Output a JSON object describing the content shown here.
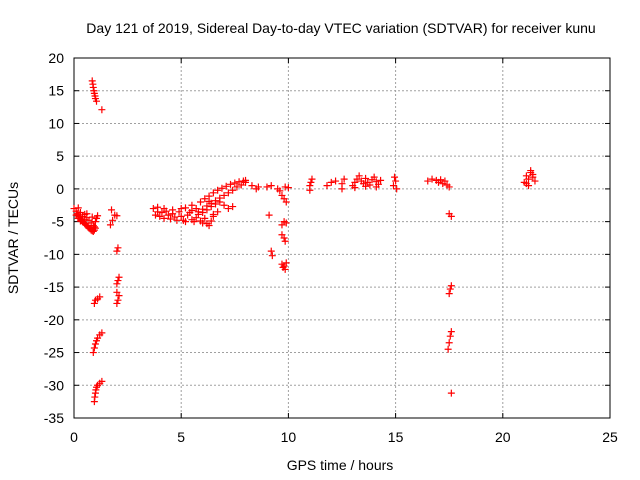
{
  "chart_data": {
    "type": "scatter",
    "title": "Day 121 of 2019, Sidereal Day-to-day VTEC variation (SDTVAR) for receiver kunu",
    "xlabel": "GPS time / hours",
    "ylabel": "SDTVAR / TECUs",
    "xlim": [
      0,
      25
    ],
    "ylim": [
      -35,
      20
    ],
    "xticks": [
      0,
      5,
      10,
      15,
      20,
      25
    ],
    "yticks": [
      -35,
      -30,
      -25,
      -20,
      -15,
      -10,
      -5,
      0,
      5,
      10,
      15,
      20
    ],
    "grid": true,
    "marker": "plus",
    "series": [
      {
        "name": "SDTVAR",
        "color": "#ff0000",
        "points": [
          [
            0.0,
            -3.0
          ],
          [
            0.1,
            -3.4
          ],
          [
            0.15,
            -3.8
          ],
          [
            0.2,
            -4.1
          ],
          [
            0.25,
            -4.3
          ],
          [
            0.3,
            -4.6
          ],
          [
            0.35,
            -4.8
          ],
          [
            0.4,
            -5.0
          ],
          [
            0.45,
            -5.1
          ],
          [
            0.5,
            -5.3
          ],
          [
            0.55,
            -5.5
          ],
          [
            0.6,
            -5.6
          ],
          [
            0.65,
            -5.8
          ],
          [
            0.7,
            -6.0
          ],
          [
            0.75,
            -6.1
          ],
          [
            0.8,
            -6.3
          ],
          [
            0.85,
            -6.4
          ],
          [
            0.9,
            -6.5
          ],
          [
            0.95,
            -6.3
          ],
          [
            1.0,
            -6.0
          ],
          [
            0.1,
            -4.0
          ],
          [
            0.2,
            -4.5
          ],
          [
            0.3,
            -4.9
          ],
          [
            0.4,
            -4.2
          ],
          [
            0.5,
            -3.9
          ],
          [
            0.6,
            -4.4
          ],
          [
            0.7,
            -4.8
          ],
          [
            0.8,
            -5.2
          ],
          [
            0.9,
            -5.6
          ],
          [
            1.0,
            -5.0
          ],
          [
            1.05,
            -4.5
          ],
          [
            1.1,
            -4.1
          ],
          [
            0.5,
            -4.7
          ],
          [
            0.3,
            -3.6
          ],
          [
            0.2,
            -2.9
          ],
          [
            0.6,
            -3.8
          ],
          [
            0.85,
            -4.3
          ],
          [
            0.95,
            -5.8
          ],
          [
            0.85,
            16.5
          ],
          [
            0.88,
            16.0
          ],
          [
            0.9,
            15.5
          ],
          [
            0.93,
            15.0
          ],
          [
            0.95,
            14.6
          ],
          [
            0.98,
            14.2
          ],
          [
            1.0,
            13.8
          ],
          [
            1.05,
            13.4
          ],
          [
            1.3,
            12.1
          ],
          [
            0.95,
            -17.5
          ],
          [
            1.0,
            -17.0
          ],
          [
            1.1,
            -16.8
          ],
          [
            1.2,
            -16.5
          ],
          [
            0.9,
            -25.0
          ],
          [
            0.95,
            -24.3
          ],
          [
            1.0,
            -23.7
          ],
          [
            1.05,
            -23.2
          ],
          [
            1.1,
            -22.8
          ],
          [
            1.2,
            -22.3
          ],
          [
            1.3,
            -22.0
          ],
          [
            0.95,
            -32.5
          ],
          [
            0.97,
            -31.8
          ],
          [
            1.0,
            -31.2
          ],
          [
            1.02,
            -30.7
          ],
          [
            1.05,
            -30.3
          ],
          [
            1.1,
            -30.0
          ],
          [
            1.2,
            -29.7
          ],
          [
            1.3,
            -29.4
          ],
          [
            1.7,
            -5.5
          ],
          [
            1.8,
            -4.8
          ],
          [
            1.9,
            -4.0
          ],
          [
            1.75,
            -3.2
          ],
          [
            2.0,
            -4.1
          ],
          [
            2.0,
            -9.5
          ],
          [
            2.05,
            -9.0
          ],
          [
            2.0,
            -14.5
          ],
          [
            2.05,
            -14.0
          ],
          [
            2.1,
            -13.5
          ],
          [
            2.0,
            -17.5
          ],
          [
            2.05,
            -17.0
          ],
          [
            2.1,
            -16.3
          ],
          [
            2.0,
            -15.8
          ],
          [
            3.7,
            -3.0
          ],
          [
            3.8,
            -4.0
          ],
          [
            3.9,
            -3.5
          ],
          [
            4.0,
            -4.2
          ],
          [
            4.1,
            -3.6
          ],
          [
            4.2,
            -4.5
          ],
          [
            4.3,
            -3.4
          ],
          [
            4.4,
            -4.0
          ],
          [
            4.5,
            -4.6
          ],
          [
            4.6,
            -3.8
          ],
          [
            4.7,
            -4.3
          ],
          [
            4.8,
            -4.8
          ],
          [
            4.9,
            -3.5
          ],
          [
            5.0,
            -4.2
          ],
          [
            5.1,
            -4.8
          ],
          [
            5.2,
            -5.0
          ],
          [
            5.3,
            -4.0
          ],
          [
            5.4,
            -3.6
          ],
          [
            5.5,
            -4.7
          ],
          [
            5.6,
            -5.0
          ],
          [
            5.7,
            -4.4
          ],
          [
            5.8,
            -3.9
          ],
          [
            5.9,
            -4.9
          ],
          [
            6.0,
            -5.2
          ],
          [
            6.1,
            -4.5
          ],
          [
            6.2,
            -5.3
          ],
          [
            6.3,
            -5.6
          ],
          [
            6.4,
            -4.9
          ],
          [
            6.5,
            -4.2
          ],
          [
            3.9,
            -2.8
          ],
          [
            4.2,
            -3.0
          ],
          [
            4.6,
            -3.2
          ],
          [
            5.0,
            -3.0
          ],
          [
            5.2,
            -2.9
          ],
          [
            5.5,
            -3.3
          ],
          [
            5.8,
            -3.5
          ],
          [
            6.0,
            -3.1
          ],
          [
            6.2,
            -2.6
          ],
          [
            6.4,
            -2.2
          ],
          [
            6.6,
            -1.8
          ],
          [
            6.8,
            -1.4
          ],
          [
            7.0,
            -1.0
          ],
          [
            7.2,
            -0.6
          ],
          [
            7.4,
            -0.2
          ],
          [
            7.6,
            0.3
          ],
          [
            7.8,
            0.6
          ],
          [
            8.0,
            1.0
          ],
          [
            5.9,
            -2.0
          ],
          [
            6.1,
            -1.5
          ],
          [
            6.3,
            -1.1
          ],
          [
            6.5,
            -0.6
          ],
          [
            6.7,
            -0.2
          ],
          [
            6.9,
            0.1
          ],
          [
            7.1,
            0.4
          ],
          [
            7.3,
            0.7
          ],
          [
            7.5,
            0.9
          ],
          [
            7.7,
            1.1
          ],
          [
            7.9,
            1.2
          ],
          [
            8.0,
            1.3
          ],
          [
            6.0,
            -3.6
          ],
          [
            6.2,
            -3.2
          ],
          [
            6.4,
            -2.7
          ],
          [
            6.6,
            -2.3
          ],
          [
            6.8,
            -2.0
          ],
          [
            7.0,
            -2.5
          ],
          [
            7.2,
            -3.0
          ],
          [
            7.4,
            -2.7
          ],
          [
            6.5,
            -3.9
          ],
          [
            6.7,
            -3.5
          ],
          [
            5.7,
            -3.0
          ],
          [
            5.5,
            -2.5
          ],
          [
            6.3,
            -1.9
          ],
          [
            8.3,
            0.5
          ],
          [
            8.6,
            0.3
          ],
          [
            8.5,
            0.0
          ],
          [
            9.0,
            0.3
          ],
          [
            9.2,
            0.5
          ],
          [
            9.1,
            -4.0
          ],
          [
            9.2,
            -9.5
          ],
          [
            9.25,
            -10.2
          ],
          [
            9.5,
            0.0
          ],
          [
            9.6,
            -0.3
          ],
          [
            9.7,
            -1.0
          ],
          [
            9.8,
            -1.5
          ],
          [
            9.9,
            -2.0
          ],
          [
            10.0,
            0.2
          ],
          [
            9.85,
            0.3
          ],
          [
            9.7,
            -5.5
          ],
          [
            9.8,
            -5.0
          ],
          [
            9.9,
            -5.2
          ],
          [
            9.7,
            -7.0
          ],
          [
            9.8,
            -7.5
          ],
          [
            9.85,
            -8.0
          ],
          [
            9.7,
            -11.5
          ],
          [
            9.75,
            -12.0
          ],
          [
            9.8,
            -11.8
          ],
          [
            9.9,
            -11.3
          ],
          [
            9.85,
            -12.3
          ],
          [
            11.0,
            0.5
          ],
          [
            11.05,
            1.0
          ],
          [
            11.1,
            1.5
          ],
          [
            11.0,
            -0.2
          ],
          [
            11.8,
            0.5
          ],
          [
            12.0,
            1.0
          ],
          [
            12.2,
            1.2
          ],
          [
            12.5,
            0.8
          ],
          [
            12.6,
            1.5
          ],
          [
            12.5,
            0.0
          ],
          [
            13.0,
            0.5
          ],
          [
            13.1,
            1.0
          ],
          [
            13.2,
            1.5
          ],
          [
            13.3,
            2.0
          ],
          [
            13.4,
            1.2
          ],
          [
            13.5,
            0.8
          ],
          [
            13.6,
            1.6
          ],
          [
            13.7,
            1.0
          ],
          [
            13.8,
            0.6
          ],
          [
            13.9,
            1.4
          ],
          [
            14.0,
            1.8
          ],
          [
            14.1,
            1.1
          ],
          [
            14.2,
            0.7
          ],
          [
            14.3,
            1.3
          ],
          [
            13.1,
            0.2
          ],
          [
            13.6,
            0.4
          ],
          [
            14.1,
            0.3
          ],
          [
            14.9,
            0.5
          ],
          [
            15.0,
            1.2
          ],
          [
            15.05,
            0.0
          ],
          [
            14.95,
            1.8
          ],
          [
            16.5,
            1.2
          ],
          [
            16.7,
            1.5
          ],
          [
            16.9,
            1.3
          ],
          [
            17.0,
            1.0
          ],
          [
            17.1,
            1.4
          ],
          [
            17.2,
            0.8
          ],
          [
            17.4,
            0.6
          ],
          [
            17.5,
            0.3
          ],
          [
            17.3,
            1.2
          ],
          [
            17.5,
            -3.8
          ],
          [
            17.6,
            -4.2
          ],
          [
            17.45,
            -24.5
          ],
          [
            17.5,
            -23.5
          ],
          [
            17.55,
            -22.5
          ],
          [
            17.6,
            -21.8
          ],
          [
            17.5,
            -16.0
          ],
          [
            17.55,
            -15.3
          ],
          [
            17.6,
            -14.8
          ],
          [
            17.6,
            -31.2
          ],
          [
            21.0,
            1.0
          ],
          [
            21.1,
            2.0
          ],
          [
            21.2,
            1.5
          ],
          [
            21.3,
            2.5
          ],
          [
            21.4,
            1.8
          ],
          [
            21.5,
            1.2
          ],
          [
            21.2,
            0.5
          ],
          [
            21.3,
            2.8
          ],
          [
            21.1,
            0.8
          ],
          [
            21.4,
            2.2
          ]
        ]
      }
    ]
  }
}
